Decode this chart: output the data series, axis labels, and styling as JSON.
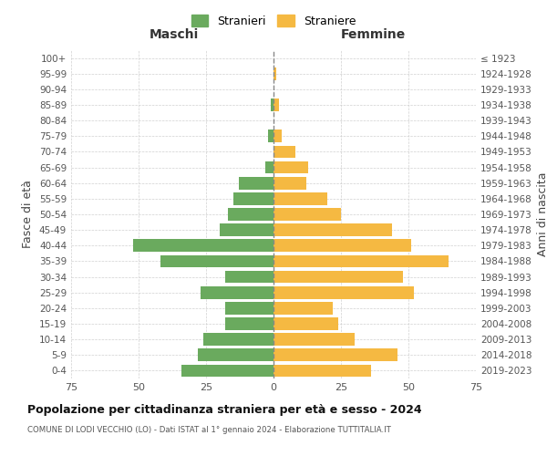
{
  "age_groups": [
    "0-4",
    "5-9",
    "10-14",
    "15-19",
    "20-24",
    "25-29",
    "30-34",
    "35-39",
    "40-44",
    "45-49",
    "50-54",
    "55-59",
    "60-64",
    "65-69",
    "70-74",
    "75-79",
    "80-84",
    "85-89",
    "90-94",
    "95-99",
    "100+"
  ],
  "birth_years": [
    "2019-2023",
    "2014-2018",
    "2009-2013",
    "2004-2008",
    "1999-2003",
    "1994-1998",
    "1989-1993",
    "1984-1988",
    "1979-1983",
    "1974-1978",
    "1969-1973",
    "1964-1968",
    "1959-1963",
    "1954-1958",
    "1949-1953",
    "1944-1948",
    "1939-1943",
    "1934-1938",
    "1929-1933",
    "1924-1928",
    "≤ 1923"
  ],
  "maschi": [
    34,
    28,
    26,
    18,
    18,
    27,
    18,
    42,
    52,
    20,
    17,
    15,
    13,
    3,
    0,
    2,
    0,
    1,
    0,
    0,
    0
  ],
  "femmine": [
    36,
    46,
    30,
    24,
    22,
    52,
    48,
    65,
    51,
    44,
    25,
    20,
    12,
    13,
    8,
    3,
    0,
    2,
    0,
    1,
    0
  ],
  "male_color": "#6aaa5e",
  "female_color": "#f5b942",
  "title": "Popolazione per cittadinanza straniera per età e sesso - 2024",
  "subtitle": "COMUNE DI LODI VECCHIO (LO) - Dati ISTAT al 1° gennaio 2024 - Elaborazione TUTTITALIA.IT",
  "left_axis_label": "Fasce di età",
  "right_axis_label": "Anni di nascita",
  "xlim": 75,
  "legend_stranieri": "Stranieri",
  "legend_straniere": "Straniere",
  "maschi_label": "Maschi",
  "femmine_label": "Femmine",
  "bg_color": "#ffffff",
  "grid_color": "#cccccc",
  "bar_height": 0.8
}
